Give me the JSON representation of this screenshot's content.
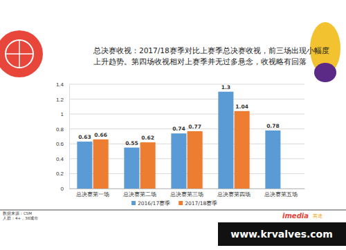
{
  "chart_data": {
    "type": "bar",
    "title": [
      "总决赛收视：2017/18赛季对比上赛季总决赛收视，前三场出现小幅度",
      "上升趋势。第四场收视相对上赛季并无过多悬念，收视略有回落"
    ],
    "categories": [
      "总决赛第一场",
      "总决赛第二场",
      "总决赛第三场",
      "总决赛第四场",
      "总决赛第五场"
    ],
    "series": [
      {
        "name": "2016/17赛季",
        "color": "#5b9bd5",
        "values": [
          0.63,
          0.55,
          0.74,
          1.3,
          0.78
        ]
      },
      {
        "name": "2017/18赛季",
        "color": "#ed7d31",
        "values": [
          0.66,
          0.62,
          0.77,
          1.04,
          null
        ]
      }
    ],
    "ylim": [
      0,
      1.4
    ],
    "yticks": [
      0,
      0.2,
      0.4,
      0.6,
      0.8,
      1,
      1.2,
      1.4
    ],
    "grid": true,
    "data_labels": true,
    "legend": "bottom",
    "annotations": [
      "数据来源：CSM",
      "人群：4+，38城市",
      "imedia",
      "英途",
      "www.krvalves.com"
    ]
  }
}
